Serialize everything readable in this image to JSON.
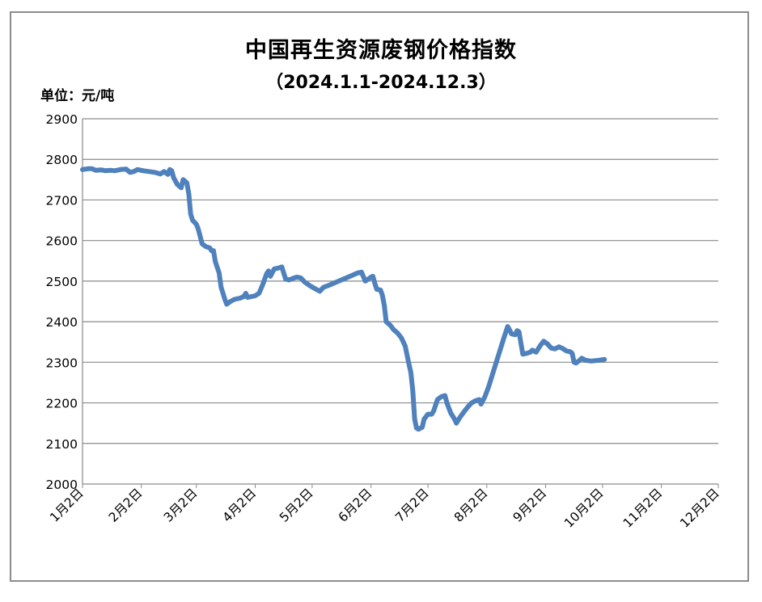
{
  "chart_data": {
    "type": "line",
    "title": "中国再生资源废钢价格指数",
    "subtitle": "（2024.1.1-2024.12.3）",
    "unit_label": "单位：元/吨",
    "ylim": [
      2000,
      2900
    ],
    "yticks": [
      "2900",
      "2800",
      "2700",
      "2600",
      "2500",
      "2400",
      "2300",
      "2200",
      "2100",
      "2000"
    ],
    "xticks": [
      "1月2日",
      "2月2日",
      "3月2日",
      "4月2日",
      "5月2日",
      "6月2日",
      "7月2日",
      "8月2日",
      "9月2日",
      "10月2日",
      "11月2日",
      "12月2日"
    ],
    "xtick_days": [
      1,
      32,
      61,
      92,
      122,
      153,
      183,
      214,
      245,
      275,
      306,
      336
    ],
    "grid": true,
    "line_color": "#4f81bd",
    "series": [
      {
        "points": [
          [
            0,
            2775
          ],
          [
            3,
            2777
          ],
          [
            5,
            2777
          ],
          [
            7,
            2773
          ],
          [
            10,
            2774
          ],
          [
            12,
            2772
          ],
          [
            15,
            2773
          ],
          [
            17,
            2772
          ],
          [
            20,
            2775
          ],
          [
            23,
            2776
          ],
          [
            25,
            2768
          ],
          [
            27,
            2770
          ],
          [
            29,
            2775
          ],
          [
            32,
            2772
          ],
          [
            35,
            2770
          ],
          [
            38,
            2768
          ],
          [
            41,
            2764
          ],
          [
            43,
            2770
          ],
          [
            45,
            2763
          ],
          [
            46,
            2775
          ],
          [
            47,
            2772
          ],
          [
            48,
            2755
          ],
          [
            50,
            2738
          ],
          [
            52,
            2730
          ],
          [
            53,
            2750
          ],
          [
            55,
            2742
          ],
          [
            56,
            2715
          ],
          [
            57,
            2665
          ],
          [
            58,
            2650
          ],
          [
            60,
            2640
          ],
          [
            61,
            2628
          ],
          [
            62,
            2610
          ],
          [
            63,
            2592
          ],
          [
            65,
            2585
          ],
          [
            67,
            2582
          ],
          [
            68,
            2575
          ],
          [
            69,
            2575
          ],
          [
            70,
            2548
          ],
          [
            72,
            2520
          ],
          [
            73,
            2485
          ],
          [
            75,
            2455
          ],
          [
            76,
            2443
          ],
          [
            78,
            2450
          ],
          [
            80,
            2455
          ],
          [
            83,
            2458
          ],
          [
            85,
            2462
          ],
          [
            86,
            2470
          ],
          [
            87,
            2460
          ],
          [
            89,
            2462
          ],
          [
            91,
            2464
          ],
          [
            93,
            2470
          ],
          [
            95,
            2492
          ],
          [
            97,
            2518
          ],
          [
            98,
            2525
          ],
          [
            99,
            2512
          ],
          [
            101,
            2530
          ],
          [
            103,
            2532
          ],
          [
            105,
            2535
          ],
          [
            106,
            2520
          ],
          [
            107,
            2505
          ],
          [
            109,
            2503
          ],
          [
            111,
            2507
          ],
          [
            113,
            2510
          ],
          [
            115,
            2508
          ],
          [
            117,
            2498
          ],
          [
            120,
            2488
          ],
          [
            123,
            2480
          ],
          [
            125,
            2475
          ],
          [
            127,
            2485
          ],
          [
            130,
            2490
          ],
          [
            135,
            2500
          ],
          [
            140,
            2510
          ],
          [
            145,
            2520
          ],
          [
            147,
            2522
          ],
          [
            149,
            2500
          ],
          [
            152,
            2510
          ],
          [
            153,
            2512
          ],
          [
            154,
            2495
          ],
          [
            155,
            2480
          ],
          [
            157,
            2478
          ],
          [
            158,
            2465
          ],
          [
            159,
            2440
          ],
          [
            160,
            2400
          ],
          [
            162,
            2392
          ],
          [
            164,
            2380
          ],
          [
            166,
            2372
          ],
          [
            168,
            2360
          ],
          [
            170,
            2340
          ],
          [
            171,
            2318
          ],
          [
            172,
            2295
          ],
          [
            173,
            2275
          ],
          [
            174,
            2230
          ],
          [
            175,
            2160
          ],
          [
            176,
            2138
          ],
          [
            177,
            2135
          ],
          [
            179,
            2140
          ],
          [
            180,
            2160
          ],
          [
            182,
            2172
          ],
          [
            184,
            2172
          ],
          [
            185,
            2180
          ],
          [
            187,
            2208
          ],
          [
            189,
            2215
          ],
          [
            191,
            2218
          ],
          [
            192,
            2200
          ],
          [
            194,
            2175
          ],
          [
            196,
            2160
          ],
          [
            197,
            2150
          ],
          [
            199,
            2165
          ],
          [
            201,
            2178
          ],
          [
            203,
            2190
          ],
          [
            205,
            2200
          ],
          [
            207,
            2205
          ],
          [
            209,
            2208
          ],
          [
            210,
            2197
          ],
          [
            212,
            2215
          ],
          [
            214,
            2240
          ],
          [
            216,
            2270
          ],
          [
            218,
            2300
          ],
          [
            220,
            2330
          ],
          [
            222,
            2360
          ],
          [
            224,
            2388
          ],
          [
            225,
            2380
          ],
          [
            226,
            2370
          ],
          [
            228,
            2368
          ],
          [
            229,
            2378
          ],
          [
            230,
            2375
          ],
          [
            232,
            2320
          ],
          [
            234,
            2322
          ],
          [
            236,
            2325
          ],
          [
            237,
            2330
          ],
          [
            239,
            2325
          ],
          [
            241,
            2340
          ],
          [
            243,
            2352
          ],
          [
            245,
            2345
          ],
          [
            247,
            2335
          ],
          [
            249,
            2333
          ],
          [
            251,
            2338
          ],
          [
            253,
            2334
          ],
          [
            255,
            2328
          ],
          [
            257,
            2326
          ],
          [
            258,
            2322
          ],
          [
            259,
            2300
          ],
          [
            260,
            2298
          ],
          [
            262,
            2305
          ],
          [
            263,
            2310
          ],
          [
            265,
            2305
          ],
          [
            268,
            2303
          ],
          [
            272,
            2305
          ],
          [
            275,
            2307
          ]
        ]
      }
    ]
  }
}
